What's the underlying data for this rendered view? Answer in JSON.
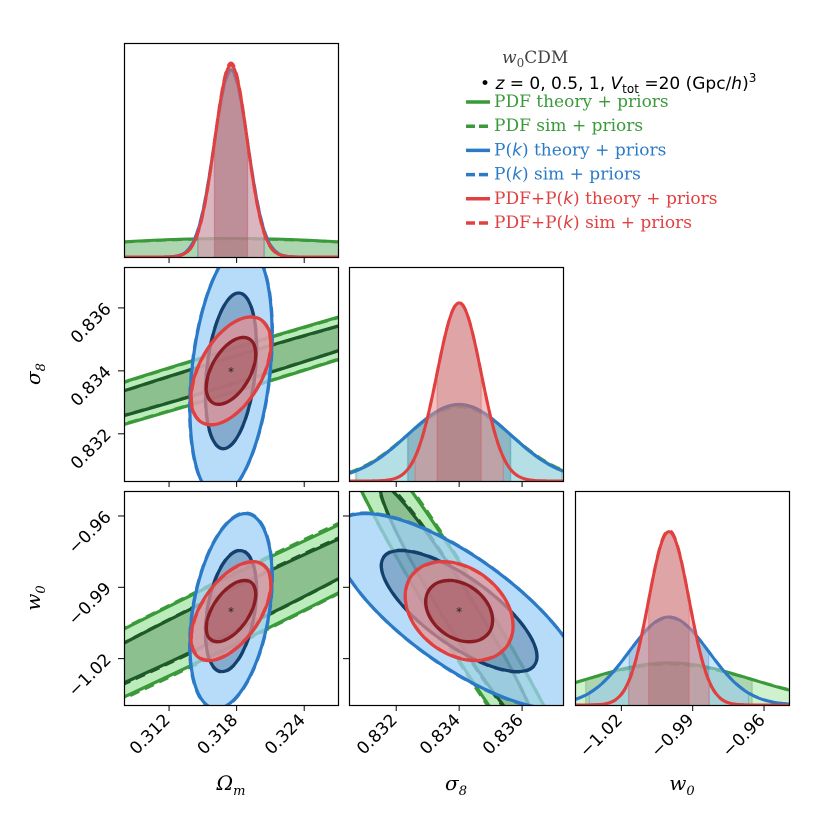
{
  "chart_data": {
    "type": "corner",
    "center": {
      "Om": 0.3175,
      "s8": 0.834,
      "w0": -1.0
    },
    "params": [
      {
        "key": "Om",
        "label": "Ω_m",
        "range": [
          0.308,
          0.327
        ],
        "ticks": [
          0.312,
          0.318,
          0.324
        ],
        "tick_labels": [
          "0.312",
          "0.318",
          "0.324"
        ]
      },
      {
        "key": "s8",
        "label": "σ_8",
        "range": [
          0.8305,
          0.8373
        ],
        "ticks": [
          0.832,
          0.834,
          0.836
        ],
        "tick_labels": [
          "0.832",
          "0.834",
          "0.836"
        ]
      },
      {
        "key": "w0",
        "label": "w_0",
        "range": [
          -1.0395,
          -0.9495
        ],
        "ticks": [
          -1.02,
          -0.99,
          -0.96
        ],
        "tick_labels": [
          "−1.02",
          "−0.99",
          "−0.96"
        ]
      }
    ],
    "axis_labels": {
      "Om": "Ωm",
      "s8": "σ8",
      "w0": "w0"
    },
    "series": [
      {
        "name": "PDF theory + priors",
        "color": "#3a9a3a",
        "fill": "#a6e6a6",
        "inner": "#1e5a28",
        "style": "solid",
        "sigma": {
          "Om": 0.015,
          "s8": 0.00165,
          "w0": 0.035
        },
        "rho": {
          "Om_s8": 0.985,
          "Om_w0": 0.985,
          "s8_w0": -0.97
        },
        "scale": 1.0
      },
      {
        "name": "PDF sim + priors",
        "color": "#3a9a3a",
        "fill": "none",
        "inner": "#1e5a28",
        "style": "dashed",
        "sigma": {
          "Om": 0.0153,
          "s8": 0.00168,
          "w0": 0.036
        },
        "rho": {
          "Om_s8": 0.986,
          "Om_w0": 0.985,
          "s8_w0": -0.97
        },
        "scale": 1.0
      },
      {
        "name": "P(k) theory + priors",
        "color": "#2a7ac8",
        "fill": "#9fd0f7",
        "inner": "#14406e",
        "style": "solid",
        "sigma": {
          "Om": 0.0016,
          "s8": 0.00175,
          "w0": 0.018
        },
        "rho": {
          "Om_s8": 0.3,
          "Om_w0": 0.35,
          "s8_w0": -0.75
        },
        "scale": 0.93
      },
      {
        "name": "P(k) sim + priors",
        "color": "#2a7ac8",
        "fill": "none",
        "inner": "#14406e",
        "style": "dashed",
        "sigma": {
          "Om": 0.00163,
          "s8": 0.00177,
          "w0": 0.0183
        },
        "rho": {
          "Om_s8": 0.3,
          "Om_w0": 0.35,
          "s8_w0": -0.75
        },
        "scale": 0.92
      },
      {
        "name": "PDF+P(k) theory + priors",
        "color": "#e04040",
        "fill": "#e89090",
        "inner": "#8a1c24",
        "style": "solid",
        "sigma": {
          "Om": 0.00145,
          "s8": 0.0007,
          "w0": 0.0085
        },
        "rho": {
          "Om_s8": 0.5,
          "Om_w0": 0.55,
          "s8_w0": -0.3
        },
        "scale": 1.0
      },
      {
        "name": "PDF+P(k) sim + priors",
        "color": "#e04040",
        "fill": "none",
        "inner": "#8a1c24",
        "style": "dashed",
        "sigma": {
          "Om": 0.00148,
          "s8": 0.00072,
          "w0": 0.0087
        },
        "rho": {
          "Om_s8": 0.5,
          "Om_w0": 0.55,
          "s8_w0": -0.3
        },
        "scale": 0.97
      }
    ]
  },
  "legend": {
    "title": "w0CDM",
    "subtitle": "z = 0, 0.5, 1,  Vtot =20 (Gpc/h)3",
    "entries": [
      {
        "label": "PDF theory + priors",
        "color": "#3a9a3a",
        "style": "solid"
      },
      {
        "label": "PDF sim + priors",
        "color": "#3a9a3a",
        "style": "dashed"
      },
      {
        "label": "P(k) theory + priors",
        "color": "#2a7ac8",
        "style": "solid"
      },
      {
        "label": "P(k) sim + priors",
        "color": "#2a7ac8",
        "style": "dashed"
      },
      {
        "label": "PDF+P(k) theory + priors",
        "color": "#e04040",
        "style": "solid"
      },
      {
        "label": "PDF+P(k) sim + priors",
        "color": "#e04040",
        "style": "dashed"
      }
    ]
  }
}
